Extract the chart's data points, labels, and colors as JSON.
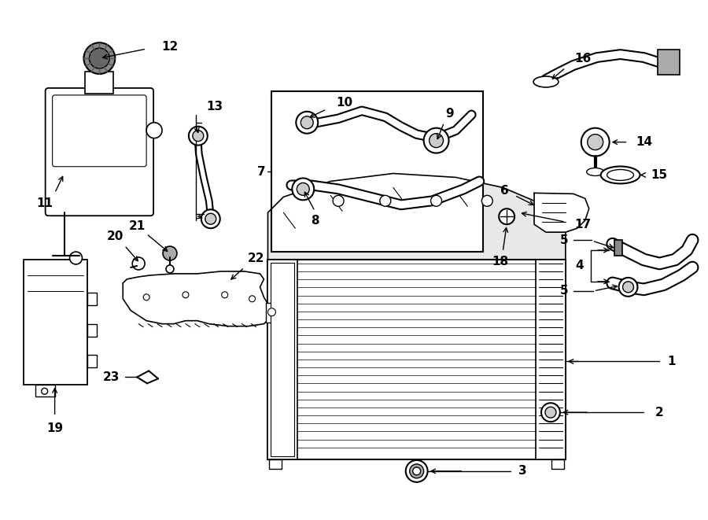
{
  "bg": "#ffffff",
  "lc": "#000000",
  "fw": 9.0,
  "fh": 6.61,
  "dpi": 100,
  "label_fs": 11
}
